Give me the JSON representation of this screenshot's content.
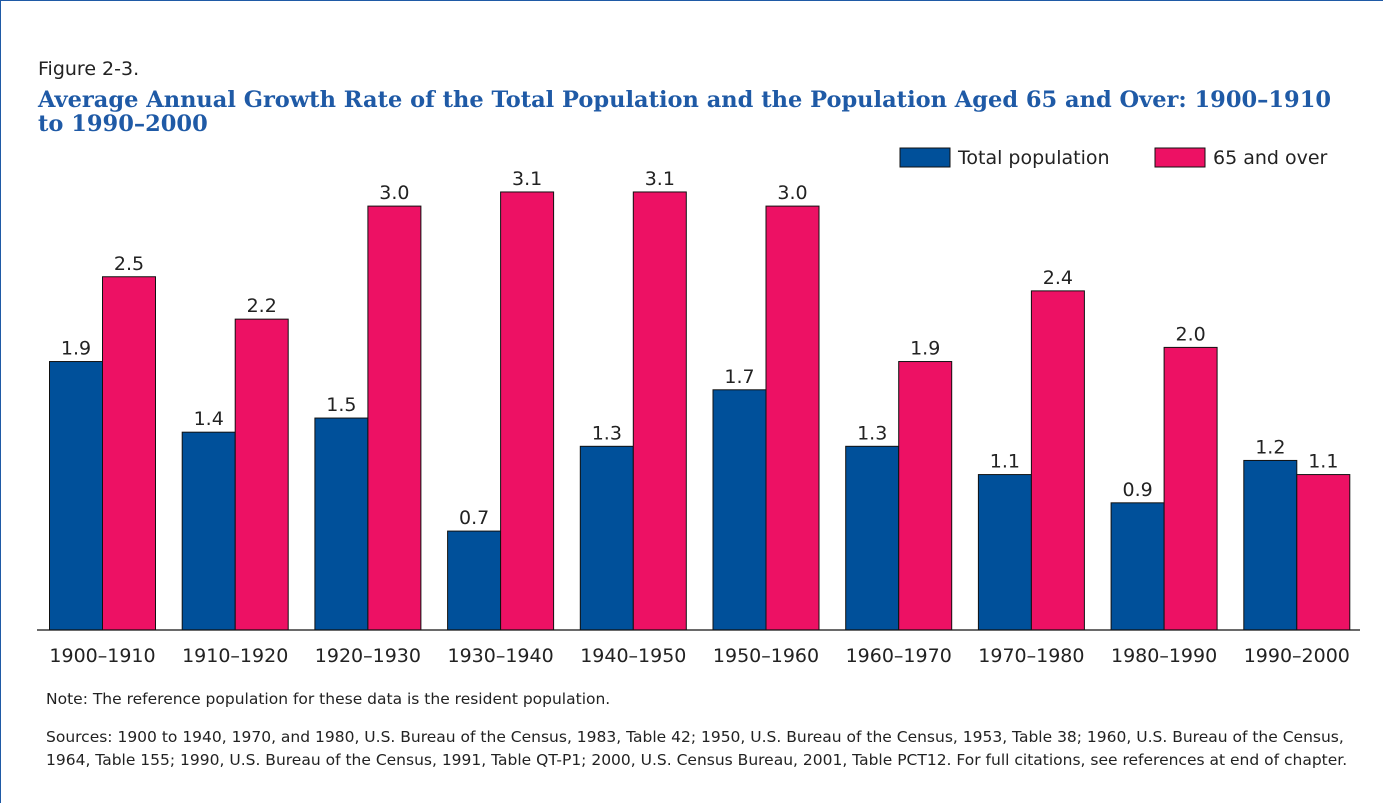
{
  "chart_data": {
    "type": "bar",
    "figure_label": "Figure 2-3.",
    "title": "Average Annual Growth Rate of the Total Population and the Population Aged 65 and Over:  1900–1910 to 1990–2000",
    "categories": [
      "1900–1910",
      "1910–1920",
      "1920–1930",
      "1930–1940",
      "1940–1950",
      "1950–1960",
      "1960–1970",
      "1970–1980",
      "1980–1990",
      "1990–2000"
    ],
    "series": [
      {
        "name": "Total population",
        "color": "#00509a",
        "values": [
          1.9,
          1.4,
          1.5,
          0.7,
          1.3,
          1.7,
          1.3,
          1.1,
          0.9,
          1.2
        ]
      },
      {
        "name": "65 and over",
        "color": "#ed1164",
        "values": [
          2.5,
          2.2,
          3.0,
          3.1,
          3.1,
          3.0,
          1.9,
          2.4,
          2.0,
          1.1
        ],
        "value_labels": [
          "2.5",
          "2.2",
          "3.0",
          "3.1",
          "3.1",
          "3.0",
          "1.9",
          "2.4",
          "2.0",
          "1.1"
        ]
      }
    ],
    "legend": "top-right",
    "note": "Note:  The reference population for these data is the resident population.",
    "sources": "Sources:  1900 to 1940, 1970, and 1980, U.S. Bureau of the Census, 1983, Table 42; 1950, U.S. Bureau of the Census, 1953, Table 38; 1960, U.S. Bureau of the Census, 1964, Table 155; 1990, U.S. Bureau of the Census, 1991, Table QT-P1; 2000, U.S. Census Bureau, 2001, Table PCT12. For full citations, see references at end of chapter."
  }
}
